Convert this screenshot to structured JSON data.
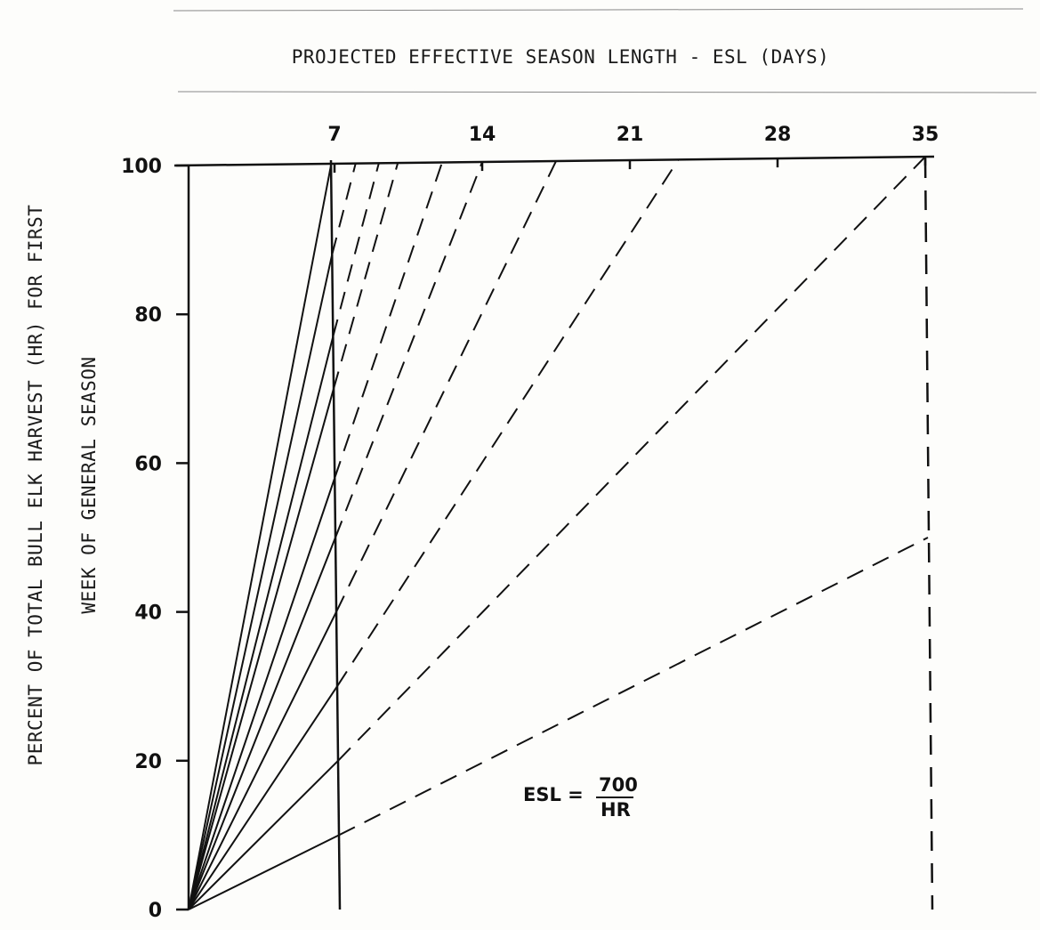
{
  "chart_data": {
    "type": "line",
    "title": "PROJECTED EFFECTIVE SEASON LENGTH - ESL (DAYS)",
    "ylabel_line1": "PERCENT OF TOTAL BULL ELK HARVEST (HR) FOR FIRST",
    "ylabel_line2": "WEEK OF GENERAL SEASON",
    "annotation": {
      "lhs": "ESL =",
      "numerator": "700",
      "denominator": "HR"
    },
    "top_axis": {
      "ticks": [
        "7",
        "14",
        "21",
        "28",
        "35"
      ],
      "range": [
        0,
        35
      ]
    },
    "left_axis": {
      "ticks": [
        "0",
        "20",
        "40",
        "60",
        "80",
        "100"
      ],
      "range": [
        0,
        100
      ]
    },
    "harvest_rates": [
      10,
      20,
      30,
      40,
      50,
      58,
      70,
      77,
      88,
      100
    ],
    "esl_days": [
      70,
      35,
      23.3,
      17.5,
      14,
      12.1,
      10,
      9.1,
      8,
      7
    ],
    "grid": false
  }
}
